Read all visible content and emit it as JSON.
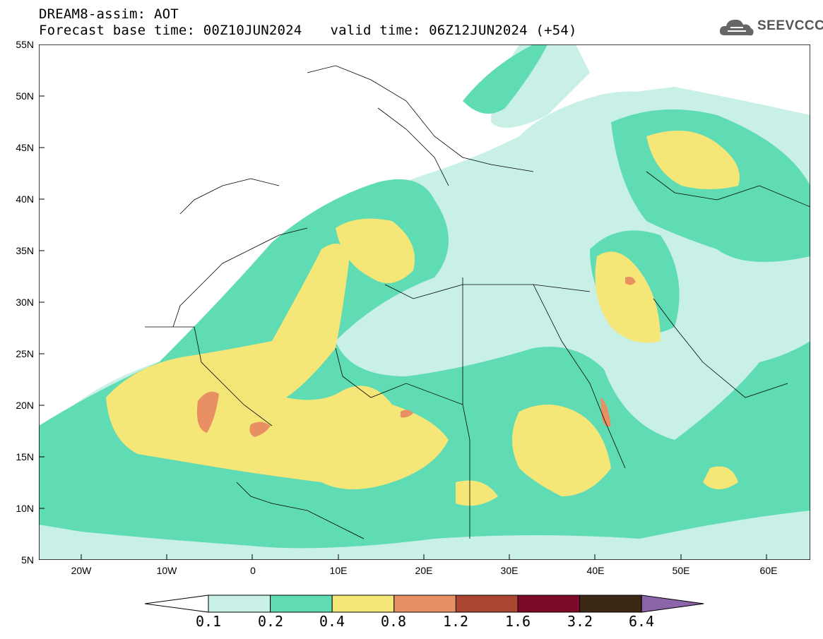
{
  "header": {
    "title": "DREAM8-assim: AOT",
    "base_time": "Forecast base time: 00Z10JUN2024",
    "valid_time": "valid time: 06Z12JUN2024 (+54)"
  },
  "logo": {
    "text": "SEEVCCC",
    "icon": "cloud-icon"
  },
  "map": {
    "lat_labels": [
      "55N",
      "50N",
      "45N",
      "40N",
      "35N",
      "30N",
      "25N",
      "20N",
      "15N",
      "10N",
      "5N"
    ],
    "lon_labels": [
      "20W",
      "10W",
      "0",
      "10E",
      "20E",
      "30E",
      "40E",
      "50E",
      "60E"
    ],
    "extent": {
      "lon_min": -25,
      "lon_max": 65,
      "lat_min": 5,
      "lat_max": 55
    }
  },
  "colorbar": {
    "labels": [
      "0.1",
      "0.2",
      "0.4",
      "0.8",
      "1.2",
      "1.6",
      "3.2",
      "6.4"
    ],
    "colors": [
      "#ffffff",
      "#c8f0e6",
      "#5fdcb4",
      "#f5e678",
      "#e89064",
      "#aa4632",
      "#7d0a28",
      "#3c2814",
      "#8c64aa"
    ]
  }
}
